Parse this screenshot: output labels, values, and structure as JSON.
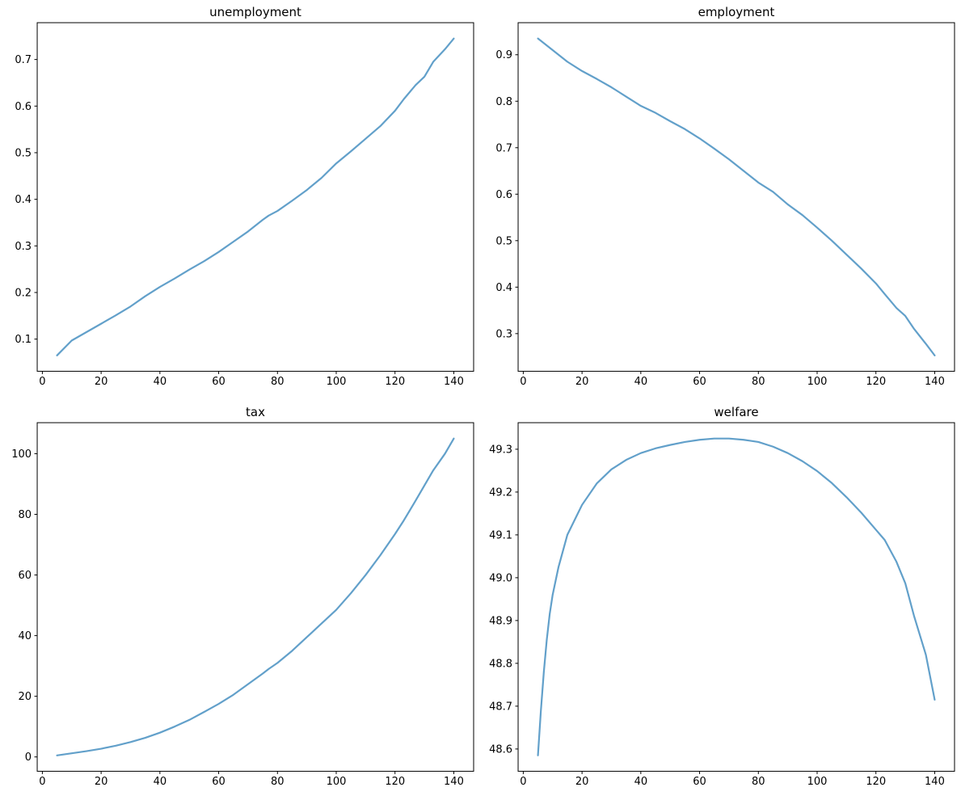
{
  "figure": {
    "background": "#ffffff",
    "line_color": "#62a0ca",
    "spine_color": "#000000",
    "tick_color": "#000000",
    "tick_label_color": "#000000",
    "title_color": "#000000"
  },
  "chart_data": [
    {
      "type": "line",
      "title": "unemployment",
      "xlabel": "",
      "ylabel": "",
      "grid": false,
      "legend": null,
      "xlim": [
        -1.75,
        146.75
      ],
      "ylim": [
        0.031,
        0.779
      ],
      "xticks": [
        0,
        20,
        40,
        60,
        80,
        100,
        120,
        140
      ],
      "xtick_labels": [
        "0",
        "20",
        "40",
        "60",
        "80",
        "100",
        "120",
        "140"
      ],
      "yticks": [
        0.1,
        0.2,
        0.3,
        0.4,
        0.5,
        0.6,
        0.7
      ],
      "ytick_labels": [
        "0.1",
        "0.2",
        "0.3",
        "0.4",
        "0.5",
        "0.6",
        "0.7"
      ],
      "x": [
        5,
        10,
        15,
        20,
        25,
        30,
        35,
        40,
        45,
        50,
        55,
        60,
        65,
        70,
        75,
        77,
        80,
        85,
        90,
        95,
        100,
        105,
        110,
        115,
        120,
        123,
        127,
        130,
        133,
        137,
        140
      ],
      "y": [
        0.065,
        0.097,
        0.115,
        0.133,
        0.151,
        0.17,
        0.192,
        0.212,
        0.23,
        0.249,
        0.267,
        0.287,
        0.309,
        0.331,
        0.356,
        0.365,
        0.375,
        0.397,
        0.42,
        0.446,
        0.477,
        0.503,
        0.53,
        0.557,
        0.59,
        0.615,
        0.645,
        0.663,
        0.695,
        0.722,
        0.745
      ]
    },
    {
      "type": "line",
      "title": "employment",
      "xlabel": "",
      "ylabel": "",
      "grid": false,
      "legend": null,
      "xlim": [
        -1.75,
        146.75
      ],
      "ylim": [
        0.219,
        0.969
      ],
      "xticks": [
        0,
        20,
        40,
        60,
        80,
        100,
        120,
        140
      ],
      "xtick_labels": [
        "0",
        "20",
        "40",
        "60",
        "80",
        "100",
        "120",
        "140"
      ],
      "yticks": [
        0.3,
        0.4,
        0.5,
        0.6,
        0.7,
        0.8,
        0.9
      ],
      "ytick_labels": [
        "0.3",
        "0.4",
        "0.5",
        "0.6",
        "0.7",
        "0.8",
        "0.9"
      ],
      "x": [
        5,
        10,
        15,
        20,
        25,
        30,
        35,
        40,
        45,
        50,
        55,
        60,
        65,
        70,
        75,
        77,
        80,
        85,
        90,
        95,
        100,
        105,
        110,
        115,
        120,
        123,
        127,
        130,
        133,
        137,
        140
      ],
      "y": [
        0.935,
        0.91,
        0.885,
        0.865,
        0.848,
        0.83,
        0.81,
        0.79,
        0.775,
        0.757,
        0.74,
        0.72,
        0.698,
        0.675,
        0.65,
        0.64,
        0.625,
        0.605,
        0.578,
        0.555,
        0.528,
        0.5,
        0.47,
        0.44,
        0.408,
        0.385,
        0.355,
        0.338,
        0.31,
        0.278,
        0.253
      ]
    },
    {
      "type": "line",
      "title": "tax",
      "xlabel": "",
      "ylabel": "",
      "grid": false,
      "legend": null,
      "xlim": [
        -1.75,
        146.75
      ],
      "ylim": [
        -4.725,
        110.225
      ],
      "xticks": [
        0,
        20,
        40,
        60,
        80,
        100,
        120,
        140
      ],
      "xtick_labels": [
        "0",
        "20",
        "40",
        "60",
        "80",
        "100",
        "120",
        "140"
      ],
      "yticks": [
        0,
        20,
        40,
        60,
        80,
        100
      ],
      "ytick_labels": [
        "0",
        "20",
        "40",
        "60",
        "80",
        "100"
      ],
      "x": [
        5,
        10,
        15,
        20,
        25,
        30,
        35,
        40,
        45,
        50,
        55,
        60,
        65,
        70,
        75,
        77,
        80,
        85,
        90,
        95,
        100,
        105,
        110,
        115,
        120,
        123,
        127,
        130,
        133,
        137,
        140
      ],
      "y": [
        0.5,
        1.2,
        1.9,
        2.7,
        3.7,
        4.9,
        6.3,
        8.0,
        10.0,
        12.2,
        14.8,
        17.5,
        20.5,
        24.0,
        27.5,
        29.0,
        31.0,
        35.0,
        39.5,
        44.0,
        48.5,
        54.0,
        60.0,
        66.5,
        73.5,
        78.0,
        84.5,
        89.5,
        94.5,
        100.0,
        105.0
      ]
    },
    {
      "type": "line",
      "title": "welfare",
      "xlabel": "",
      "ylabel": "",
      "grid": false,
      "legend": null,
      "xlim": [
        -1.75,
        146.75
      ],
      "ylim": [
        48.548,
        49.362
      ],
      "xticks": [
        0,
        20,
        40,
        60,
        80,
        100,
        120,
        140
      ],
      "xtick_labels": [
        "0",
        "20",
        "40",
        "60",
        "80",
        "100",
        "120",
        "140"
      ],
      "yticks": [
        48.6,
        48.7,
        48.8,
        48.9,
        49.0,
        49.1,
        49.2,
        49.3
      ],
      "ytick_labels": [
        "48.6",
        "48.7",
        "48.8",
        "48.9",
        "49.0",
        "49.1",
        "49.2",
        "49.3"
      ],
      "x": [
        5,
        6,
        7,
        8,
        9,
        10,
        12,
        15,
        20,
        25,
        30,
        35,
        40,
        45,
        50,
        55,
        60,
        65,
        70,
        75,
        77,
        80,
        85,
        90,
        95,
        100,
        105,
        110,
        115,
        120,
        123,
        127,
        130,
        133,
        137,
        140
      ],
      "y": [
        48.585,
        48.69,
        48.78,
        48.855,
        48.915,
        48.96,
        49.025,
        49.1,
        49.17,
        49.22,
        49.253,
        49.275,
        49.291,
        49.302,
        49.31,
        49.317,
        49.322,
        49.325,
        49.325,
        49.322,
        49.32,
        49.317,
        49.306,
        49.291,
        49.272,
        49.249,
        49.221,
        49.188,
        49.152,
        49.112,
        49.088,
        49.037,
        48.987,
        48.91,
        48.82,
        48.715
      ]
    }
  ]
}
